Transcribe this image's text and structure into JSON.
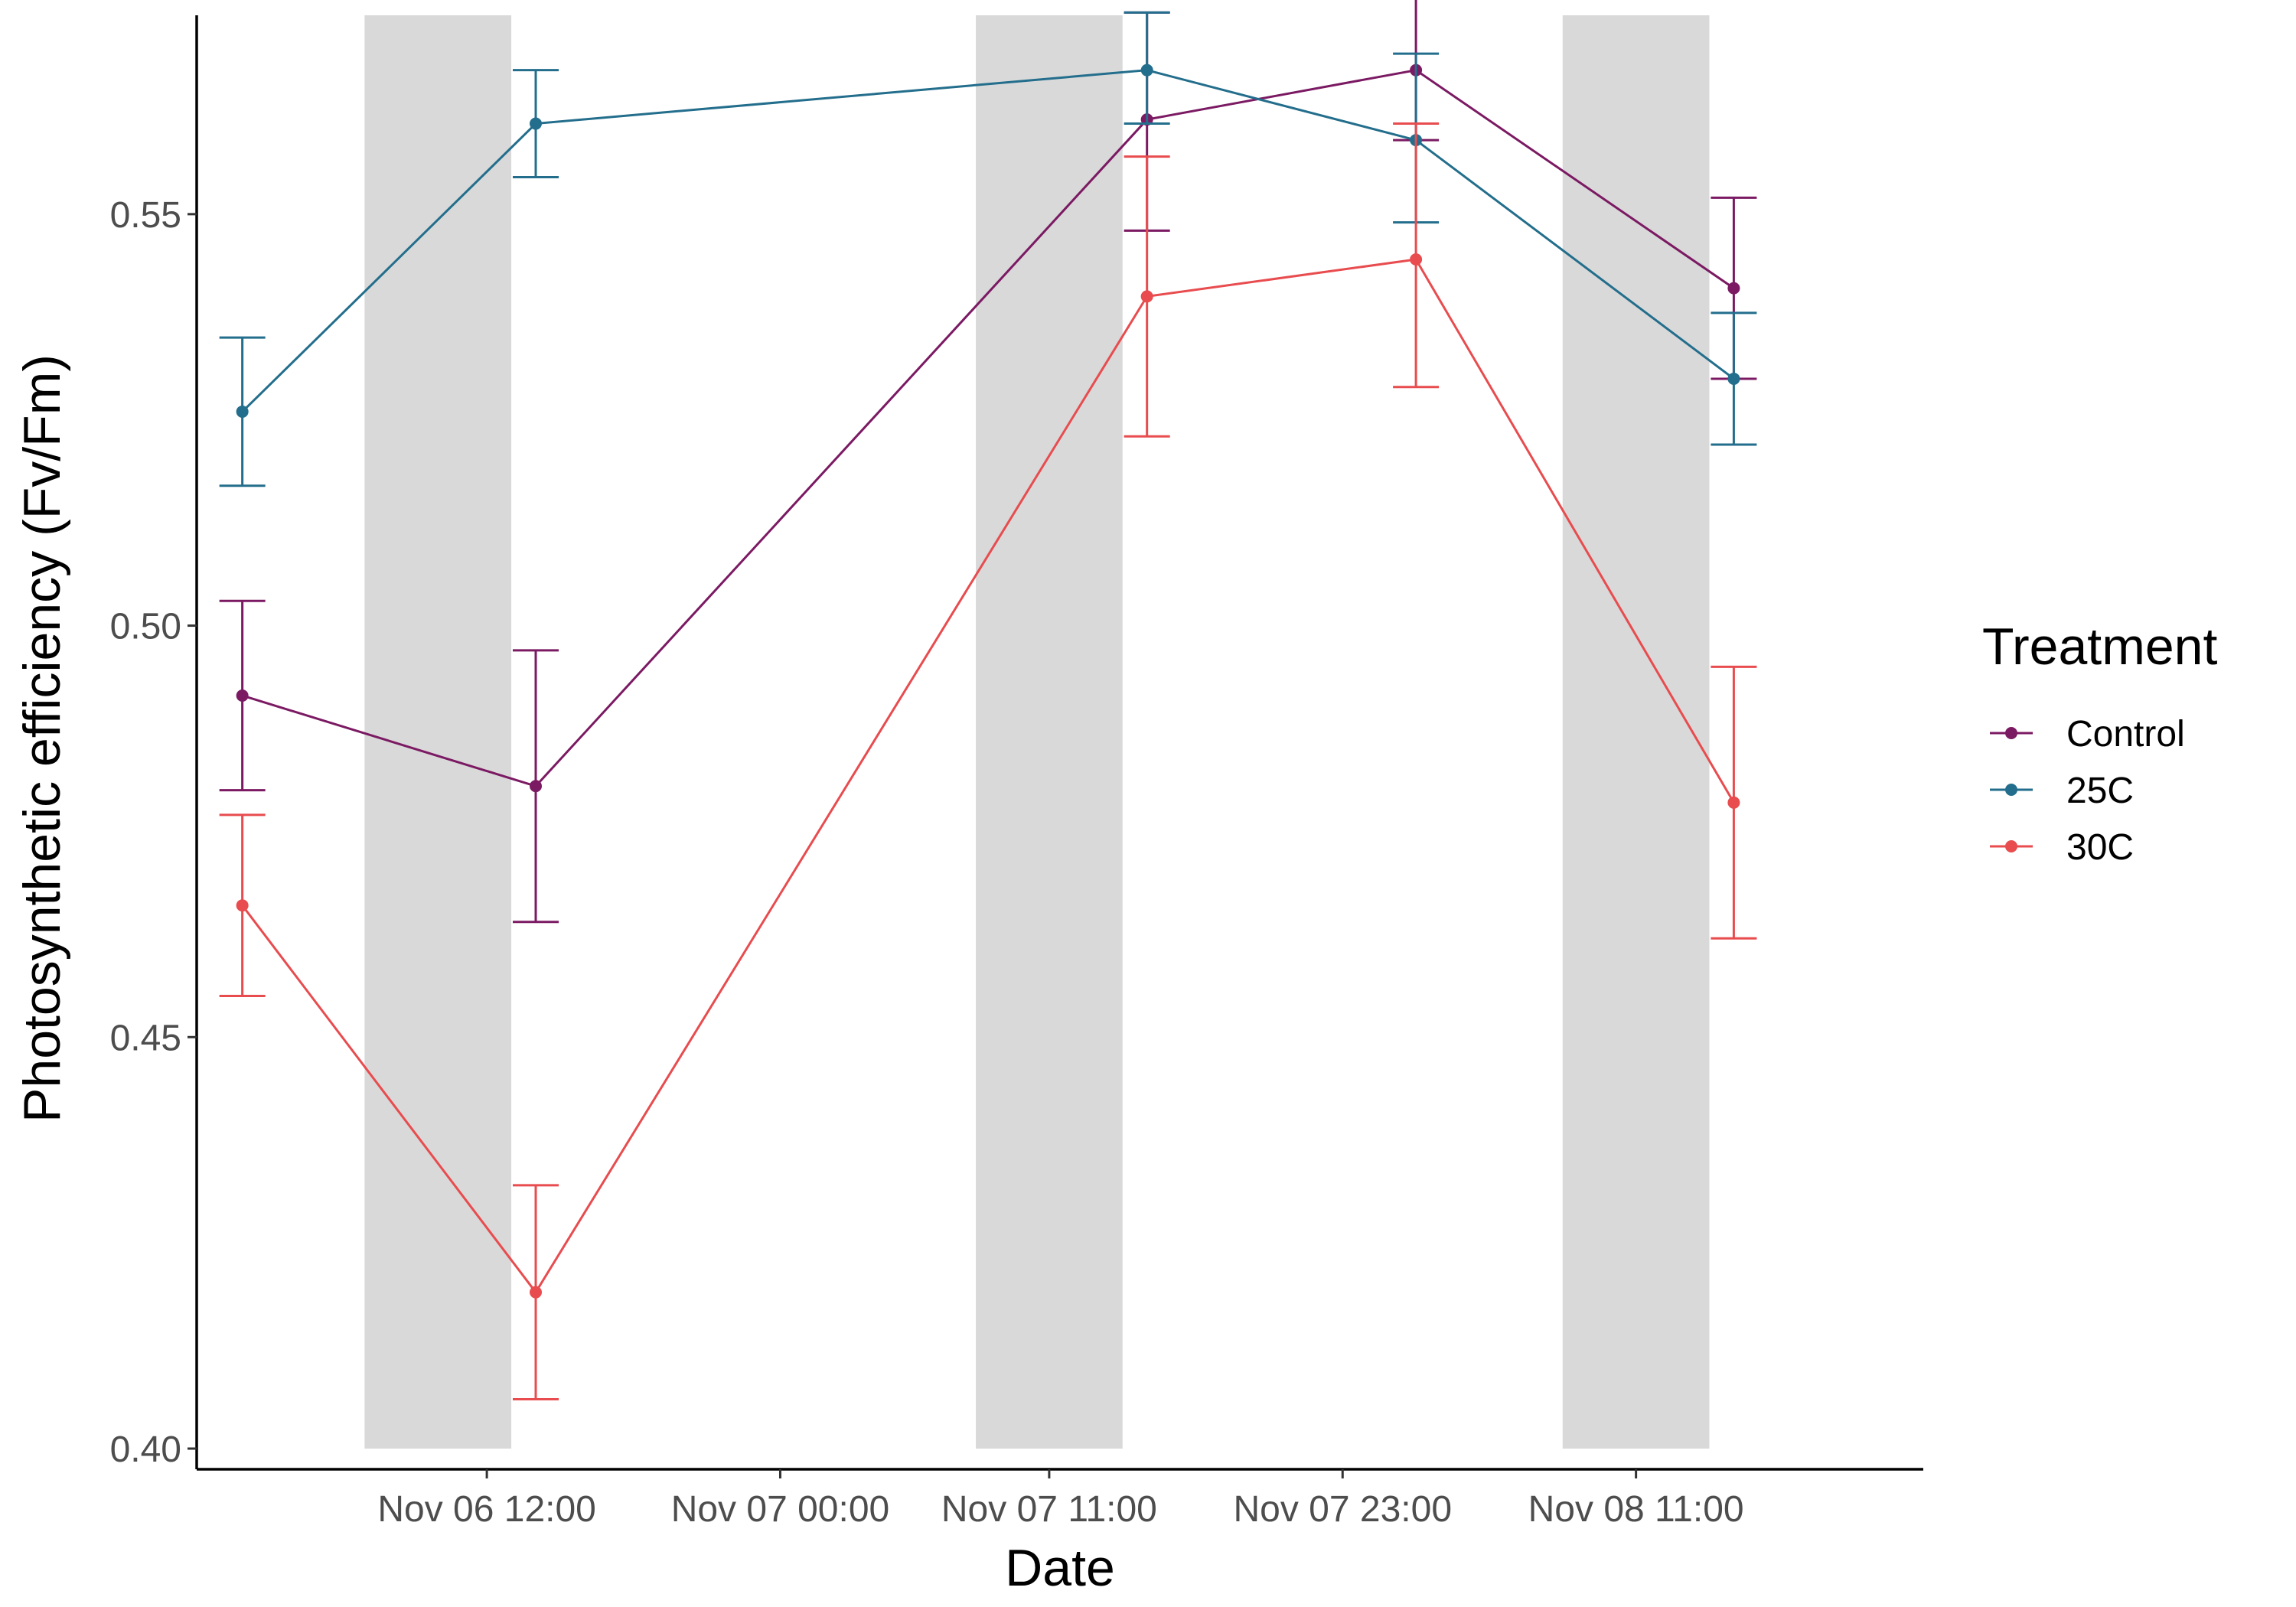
{
  "chart_data": {
    "type": "line",
    "xlabel": "Date",
    "ylabel": "Photosynthetic efficiency (Fv/Fm)",
    "ylim": [
      0.4,
      0.575
    ],
    "yticks": [
      0.4,
      0.45,
      0.5,
      0.55
    ],
    "ytick_labels": [
      "0.40",
      "0.45",
      "0.50",
      "0.55"
    ],
    "xlim": [
      "2024-11-06 00:08",
      "2024-11-08 22:45"
    ],
    "xticks": [
      "2024-11-06 12:00",
      "2024-11-07 00:00",
      "2024-11-07 11:00",
      "2024-11-07 23:00",
      "2024-11-08 11:00"
    ],
    "xtick_labels": [
      "Nov 06 12:00",
      "Nov 07 00:00",
      "Nov 07 11:00",
      "Nov 07 23:00",
      "Nov 08 11:00"
    ],
    "x_year_assumed": "",
    "shaded_intervals": [
      [
        "2024-11-06 07:00",
        "2024-11-06 13:00"
      ],
      [
        "2024-11-07 08:00",
        "2024-11-07 14:00"
      ],
      [
        "2024-11-08 08:00",
        "2024-11-08 14:00"
      ]
    ],
    "shade_color": "#d9d9d9",
    "x": [
      "2024-11-06 02:00",
      "2024-11-06 14:00",
      "2024-11-07 15:00",
      "2024-11-08 02:00",
      "2024-11-08 15:00"
    ],
    "series": [
      {
        "name": "Control",
        "color": "#7b1a63",
        "values": [
          0.4915,
          0.4805,
          0.5615,
          0.5675,
          0.541
        ],
        "err_low": [
          0.48,
          0.464,
          0.548,
          0.559,
          0.53
        ],
        "err_high": [
          0.503,
          0.497,
          0.5745,
          0.5765,
          0.552
        ]
      },
      {
        "name": "25C",
        "color": "#236e8c",
        "values": [
          0.526,
          0.561,
          0.5675,
          0.559,
          0.53
        ],
        "err_low": [
          0.517,
          0.5545,
          0.561,
          0.549,
          0.522
        ],
        "err_high": [
          0.535,
          0.5675,
          0.5745,
          0.5695,
          0.538
        ]
      },
      {
        "name": "30C",
        "color": "#e84c4f",
        "values": [
          0.466,
          0.419,
          0.54,
          0.5445,
          0.4785
        ],
        "err_low": [
          0.455,
          0.406,
          0.523,
          0.529,
          0.462
        ],
        "err_high": [
          0.477,
          0.432,
          0.557,
          0.561,
          0.495
        ]
      }
    ],
    "legend": {
      "title": "Treatment",
      "placement": "right"
    },
    "grid": false
  }
}
